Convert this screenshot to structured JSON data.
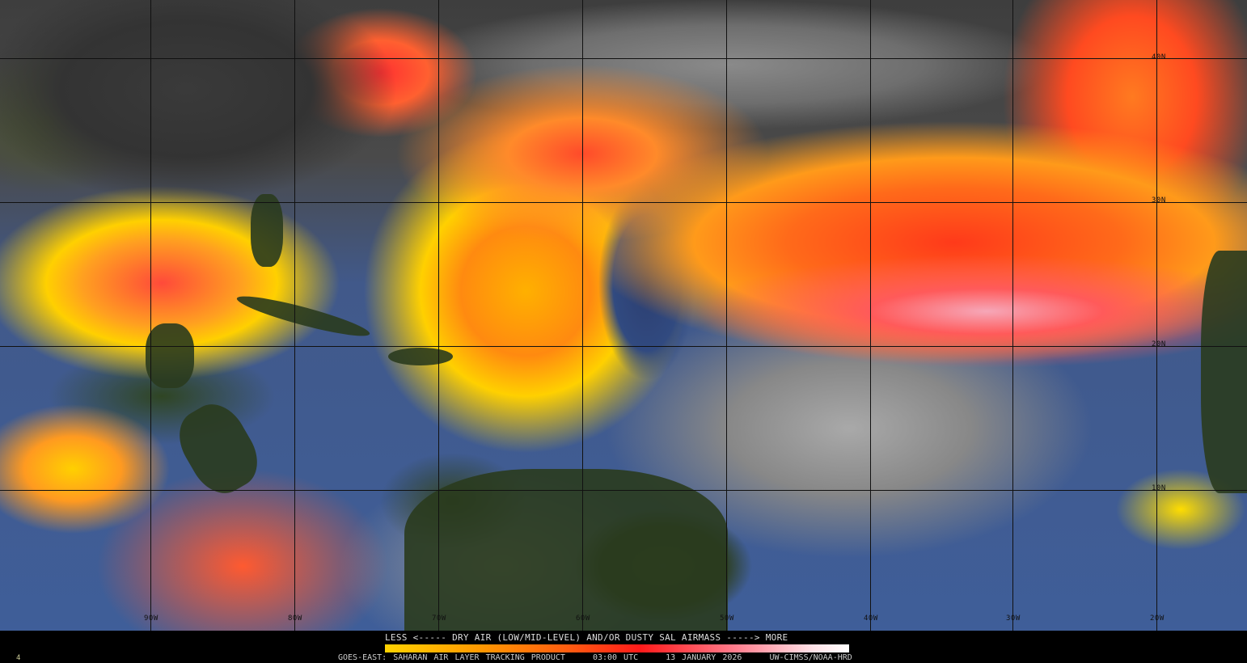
{
  "product": {
    "legend_title": "LESS <----- DRY AIR (LOW/MID-LEVEL) AND/OR DUSTY SAL AIRMASS -----> MORE",
    "satellite": "GOES-EAST: SAHARAN AIR LAYER TRACKING PRODUCT",
    "time": "03:00 UTC",
    "date": "13 JANUARY 2026",
    "credit": "UW-CIMSS/NOAA-HRD",
    "corner_mark": "4"
  },
  "legend_colors": [
    "#ffd200",
    "#ff9a00",
    "#ff1a1a",
    "#ff7a8a",
    "#ffffff"
  ],
  "longitude_labels": [
    "90W",
    "80W",
    "70W",
    "60W",
    "50W",
    "40W",
    "30W",
    "20W"
  ],
  "latitude_labels": [
    "40N",
    "30N",
    "20N",
    "10N"
  ]
}
